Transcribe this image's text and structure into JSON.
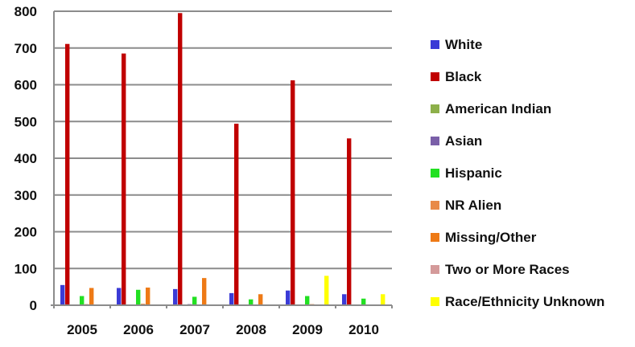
{
  "chart_data": {
    "type": "bar",
    "title": "",
    "xlabel": "",
    "ylabel": "",
    "categories": [
      "2005",
      "2006",
      "2007",
      "2008",
      "2009",
      "2010"
    ],
    "ylim": [
      0,
      800
    ],
    "yticks": [
      "0",
      "100",
      "200",
      "300",
      "400",
      "500",
      "600",
      "700",
      "800"
    ],
    "grid": true,
    "legend_position": "right",
    "series": [
      {
        "name": "White",
        "color": "#3b3bd6",
        "values": [
          55,
          47,
          44,
          33,
          40,
          30
        ]
      },
      {
        "name": "Black",
        "color": "#c00000",
        "values": [
          711,
          685,
          795,
          494,
          612,
          454
        ]
      },
      {
        "name": "American Indian",
        "color": "#8db04a",
        "values": [
          1,
          1,
          1,
          1,
          1,
          1
        ]
      },
      {
        "name": "Asian",
        "color": "#7a5fa8",
        "values": [
          2,
          2,
          3,
          2,
          2,
          1
        ]
      },
      {
        "name": "Hispanic",
        "color": "#22e022",
        "values": [
          25,
          42,
          23,
          16,
          25,
          18
        ]
      },
      {
        "name": "NR Alien",
        "color": "#e88a48",
        "values": [
          3,
          4,
          2,
          2,
          3,
          2
        ]
      },
      {
        "name": "Missing/Other",
        "color": "#ee7a16",
        "values": [
          47,
          48,
          74,
          30,
          1,
          1
        ]
      },
      {
        "name": "Two or More Races",
        "color": "#d49a9a",
        "values": [
          0,
          0,
          0,
          0,
          1,
          1
        ]
      },
      {
        "name": "Race/Ethnicity Unknown",
        "color": "#ffff00",
        "values": [
          0,
          0,
          0,
          0,
          80,
          30
        ]
      }
    ]
  }
}
